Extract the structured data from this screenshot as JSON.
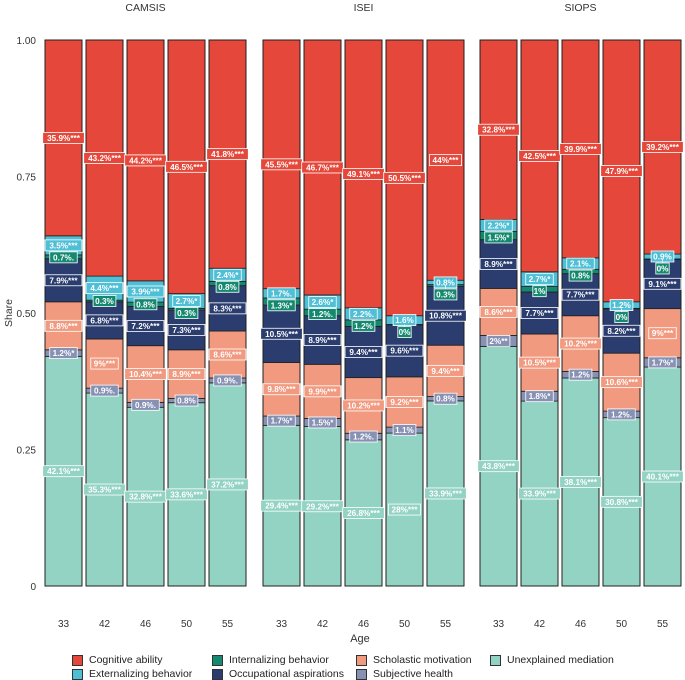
{
  "chart_data": {
    "type": "bar",
    "stacked": true,
    "ylabel": "Share",
    "xlabel": "Age",
    "ylim": [
      0,
      1
    ],
    "yticks": [
      "0",
      "0.25",
      "0.50",
      "0.75",
      "1.00"
    ],
    "ytick_values": [
      0,
      0.25,
      0.5,
      0.75,
      1.0
    ],
    "component_order_bottom_to_top": [
      "unexplained",
      "subjective",
      "scholastic",
      "occupational",
      "internalizing",
      "externalizing",
      "cognitive"
    ],
    "components": {
      "cognitive": {
        "name": "Cognitive ability",
        "color": "#e5483a"
      },
      "externalizing": {
        "name": "Externalizing behavior",
        "color": "#4fbfd6"
      },
      "internalizing": {
        "name": "Internalizing behavior",
        "color": "#14896f"
      },
      "occupational": {
        "name": "Occupational aspirations",
        "color": "#2b3d6e"
      },
      "scholastic": {
        "name": "Scholastic motivation",
        "color": "#f19a80"
      },
      "subjective": {
        "name": "Subjective health",
        "color": "#8791b3"
      },
      "unexplained": {
        "name": "Unexplained mediation",
        "color": "#93d3c3"
      }
    },
    "panels": [
      {
        "title": "CAMSIS",
        "categories": [
          "33",
          "42",
          "46",
          "50",
          "55"
        ],
        "bars": [
          {
            "values": {
              "unexplained": 0.421,
              "subjective": 0.012,
              "scholastic": 0.088,
              "occupational": 0.079,
              "internalizing": 0.007,
              "externalizing": 0.035,
              "cognitive": 0.359
            },
            "labels": {
              "unexplained": "42.1%***",
              "subjective": "1.2%*",
              "scholastic": "8.8%***",
              "occupational": "7.9%***",
              "internalizing": "0.7%.",
              "externalizing": "3.5%***",
              "cognitive": "35.9%***"
            }
          },
          {
            "values": {
              "unexplained": 0.353,
              "subjective": 0.009,
              "scholastic": 0.09,
              "occupational": 0.068,
              "internalizing": 0.003,
              "externalizing": 0.044,
              "cognitive": 0.432
            },
            "labels": {
              "unexplained": "35.3%***",
              "subjective": "0.9%.",
              "scholastic": "9%***",
              "occupational": "6.8%***",
              "internalizing": "0.3%",
              "externalizing": "4.4%***",
              "cognitive": "43.2%***"
            }
          },
          {
            "values": {
              "unexplained": 0.328,
              "subjective": 0.009,
              "scholastic": 0.104,
              "occupational": 0.072,
              "internalizing": 0.008,
              "externalizing": 0.039,
              "cognitive": 0.442
            },
            "labels": {
              "unexplained": "32.8%***",
              "subjective": "0.9%.",
              "scholastic": "10.4%***",
              "occupational": "7.2%***",
              "internalizing": "0.8%",
              "externalizing": "3.9%***",
              "cognitive": "44.2%***"
            }
          },
          {
            "values": {
              "unexplained": 0.336,
              "subjective": 0.008,
              "scholastic": 0.089,
              "occupational": 0.073,
              "internalizing": 0.003,
              "externalizing": 0.027,
              "cognitive": 0.465
            },
            "labels": {
              "unexplained": "33.6%***",
              "subjective": "0.8%",
              "scholastic": "8.9%***",
              "occupational": "7.3%***",
              "internalizing": "0.3%",
              "externalizing": "2.7%*",
              "cognitive": "46.5%***"
            }
          },
          {
            "values": {
              "unexplained": 0.372,
              "subjective": 0.009,
              "scholastic": 0.086,
              "occupational": 0.083,
              "internalizing": 0.008,
              "externalizing": 0.024,
              "cognitive": 0.418
            },
            "labels": {
              "unexplained": "37.2%***",
              "subjective": "0.9%.",
              "scholastic": "8.6%***",
              "occupational": "8.3%***",
              "internalizing": "0.8%",
              "externalizing": "2.4%*",
              "cognitive": "41.8%***"
            }
          }
        ]
      },
      {
        "title": "ISEI",
        "categories": [
          "33",
          "42",
          "46",
          "50",
          "55"
        ],
        "bars": [
          {
            "values": {
              "unexplained": 0.294,
              "subjective": 0.017,
              "scholastic": 0.098,
              "occupational": 0.105,
              "internalizing": 0.013,
              "externalizing": 0.017,
              "cognitive": 0.455
            },
            "labels": {
              "unexplained": "29.4%***",
              "subjective": "1.7%*",
              "scholastic": "9.8%***",
              "occupational": "10.5%***",
              "internalizing": "1.3%*",
              "externalizing": "1.7%.",
              "cognitive": "45.5%***"
            }
          },
          {
            "values": {
              "unexplained": 0.292,
              "subjective": 0.015,
              "scholastic": 0.099,
              "occupational": 0.089,
              "internalizing": 0.012,
              "externalizing": 0.026,
              "cognitive": 0.467
            },
            "labels": {
              "unexplained": "29.2%***",
              "subjective": "1.5%*",
              "scholastic": "9.9%***",
              "occupational": "8.9%***",
              "internalizing": "1.2%.",
              "externalizing": "2.6%*",
              "cognitive": "46.7%***"
            }
          },
          {
            "values": {
              "unexplained": 0.268,
              "subjective": 0.012,
              "scholastic": 0.102,
              "occupational": 0.094,
              "internalizing": 0.012,
              "externalizing": 0.022,
              "cognitive": 0.491
            },
            "labels": {
              "unexplained": "26.8%***",
              "subjective": "1.2%.",
              "scholastic": "10.2%***",
              "occupational": "9.4%***",
              "internalizing": "1.2%",
              "externalizing": "2.2%.",
              "cognitive": "49.1%***"
            }
          },
          {
            "values": {
              "unexplained": 0.28,
              "subjective": 0.011,
              "scholastic": 0.092,
              "occupational": 0.096,
              "internalizing": 0.0,
              "externalizing": 0.016,
              "cognitive": 0.505
            },
            "labels": {
              "unexplained": "28%***",
              "subjective": "1.1%",
              "scholastic": "9.2%***",
              "occupational": "9.6%***",
              "internalizing": "0%",
              "externalizing": "1.6%",
              "cognitive": "50.5%***"
            }
          },
          {
            "values": {
              "unexplained": 0.339,
              "subjective": 0.008,
              "scholastic": 0.094,
              "occupational": 0.108,
              "internalizing": 0.003,
              "externalizing": 0.008,
              "cognitive": 0.44
            },
            "labels": {
              "unexplained": "33.9%***",
              "subjective": "0.8%",
              "scholastic": "9.4%***",
              "occupational": "10.8%***",
              "internalizing": "0.3%",
              "externalizing": "0.8%",
              "cognitive": "44%***"
            }
          }
        ]
      },
      {
        "title": "SIOPS",
        "categories": [
          "33",
          "42",
          "46",
          "50",
          "55"
        ],
        "bars": [
          {
            "values": {
              "unexplained": 0.438,
              "subjective": 0.02,
              "scholastic": 0.086,
              "occupational": 0.089,
              "internalizing": 0.015,
              "externalizing": 0.022,
              "cognitive": 0.328
            },
            "labels": {
              "unexplained": "43.8%***",
              "subjective": "2%**",
              "scholastic": "8.6%***",
              "occupational": "8.9%***",
              "internalizing": "1.5%*",
              "externalizing": "2.2%*",
              "cognitive": "32.8%***"
            }
          },
          {
            "values": {
              "unexplained": 0.339,
              "subjective": 0.018,
              "scholastic": 0.105,
              "occupational": 0.077,
              "internalizing": 0.01,
              "externalizing": 0.027,
              "cognitive": 0.425
            },
            "labels": {
              "unexplained": "33.9%***",
              "subjective": "1.8%*",
              "scholastic": "10.5%***",
              "occupational": "7.7%***",
              "internalizing": "1%",
              "externalizing": "2.7%*",
              "cognitive": "42.5%***"
            }
          },
          {
            "values": {
              "unexplained": 0.381,
              "subjective": 0.012,
              "scholastic": 0.102,
              "occupational": 0.077,
              "internalizing": 0.008,
              "externalizing": 0.021,
              "cognitive": 0.399
            },
            "labels": {
              "unexplained": "38.1%***",
              "subjective": "1.2%",
              "scholastic": "10.2%***",
              "occupational": "7.7%***",
              "internalizing": "0.8%",
              "externalizing": "2.1%.",
              "cognitive": "39.9%***"
            }
          },
          {
            "values": {
              "unexplained": 0.308,
              "subjective": 0.012,
              "scholastic": 0.106,
              "occupational": 0.082,
              "internalizing": 0.0,
              "externalizing": 0.012,
              "cognitive": 0.479
            },
            "labels": {
              "unexplained": "30.8%***",
              "subjective": "1.2%.",
              "scholastic": "10.6%***",
              "occupational": "8.2%***",
              "internalizing": "0%",
              "externalizing": "1.2%",
              "cognitive": "47.9%***"
            }
          },
          {
            "values": {
              "unexplained": 0.401,
              "subjective": 0.017,
              "scholastic": 0.09,
              "occupational": 0.091,
              "internalizing": 0.0,
              "externalizing": 0.009,
              "cognitive": 0.392
            },
            "labels": {
              "unexplained": "40.1%***",
              "subjective": "1.7%*",
              "scholastic": "9%***",
              "occupational": "9.1%***",
              "internalizing": "0%",
              "externalizing": "0.9%",
              "cognitive": "39.2%***"
            }
          }
        ]
      }
    ],
    "legend": {
      "placement": "bottom",
      "items": [
        {
          "key": "cognitive",
          "label": "Cognitive ability"
        },
        {
          "key": "externalizing",
          "label": "Externalizing behavior"
        },
        {
          "key": "internalizing",
          "label": "Internalizing behavior"
        },
        {
          "key": "occupational",
          "label": "Occupational aspirations"
        },
        {
          "key": "scholastic",
          "label": "Scholastic motivation"
        },
        {
          "key": "subjective",
          "label": "Subjective health"
        },
        {
          "key": "unexplained",
          "label": "Unexplained mediation"
        }
      ]
    }
  }
}
